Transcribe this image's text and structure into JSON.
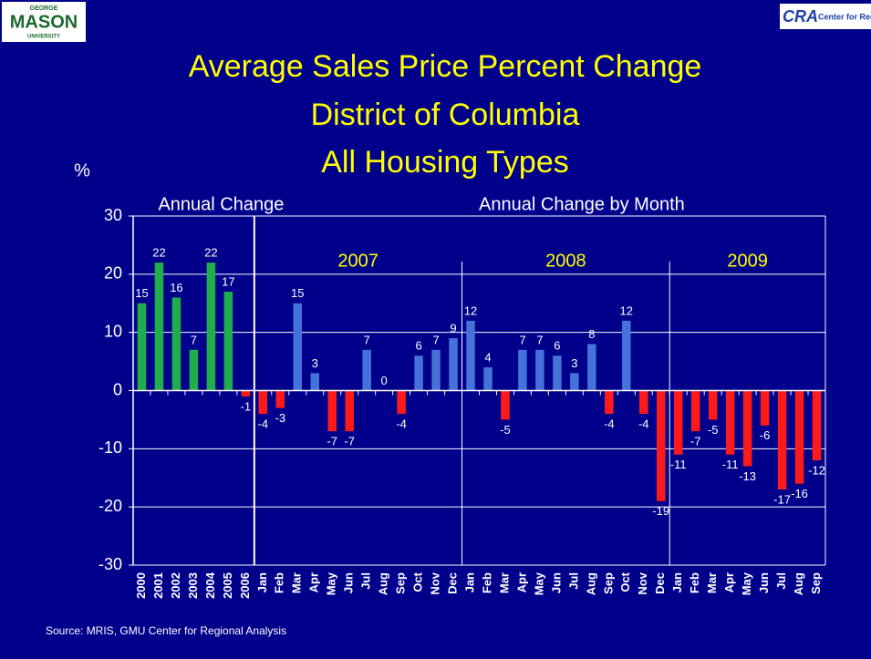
{
  "chart_data": {
    "type": "bar",
    "title": [
      "Average Sales Price Percent Change",
      "District of Columbia",
      "All Housing Types"
    ],
    "y_label": "%",
    "source": "Source: MRIS, GMU Center for Regional Analysis",
    "logos": {
      "left": [
        "GEORGE",
        "MASON",
        "UNIVERSITY"
      ],
      "right": [
        "CRA",
        "Center for Regional Analy"
      ]
    },
    "ylim": [
      -30,
      30
    ],
    "yticks": [
      -30,
      -20,
      -10,
      0,
      10,
      20,
      30
    ],
    "grid": true,
    "negative_color": "#ff1a1a",
    "sections": [
      {
        "label": "Annual Change",
        "color": "#1fae4b",
        "categories": [
          "2000",
          "2001",
          "2002",
          "2003",
          "2004",
          "2005",
          "2006"
        ],
        "values": [
          15,
          22,
          16,
          7,
          22,
          17,
          -1
        ]
      },
      {
        "label": "Annual Change by Month",
        "color": "#4472d8",
        "years": [
          {
            "label": "2007",
            "categories": [
              "Jan",
              "Feb",
              "Mar",
              "Apr",
              "May",
              "Jun",
              "Jul",
              "Aug",
              "Sep",
              "Oct",
              "Nov",
              "Dec"
            ],
            "values": [
              -4,
              -3,
              15,
              3,
              -7,
              -7,
              7,
              0,
              -4,
              6,
              7,
              9
            ]
          },
          {
            "label": "2008",
            "categories": [
              "Jan",
              "Feb",
              "Mar",
              "Apr",
              "May",
              "Jun",
              "Jul",
              "Aug",
              "Sep",
              "Oct",
              "Nov",
              "Dec"
            ],
            "values": [
              12,
              4,
              -5,
              7,
              7,
              6,
              3,
              8,
              -4,
              12,
              -4,
              -19
            ]
          },
          {
            "label": "2009",
            "categories": [
              "Jan",
              "Feb",
              "Mar",
              "Apr",
              "May",
              "Jun",
              "Jul",
              "Aug",
              "Sep"
            ],
            "values": [
              -11,
              -7,
              -5,
              -11,
              -13,
              -6,
              -17,
              -16,
              -12
            ]
          }
        ]
      }
    ]
  }
}
